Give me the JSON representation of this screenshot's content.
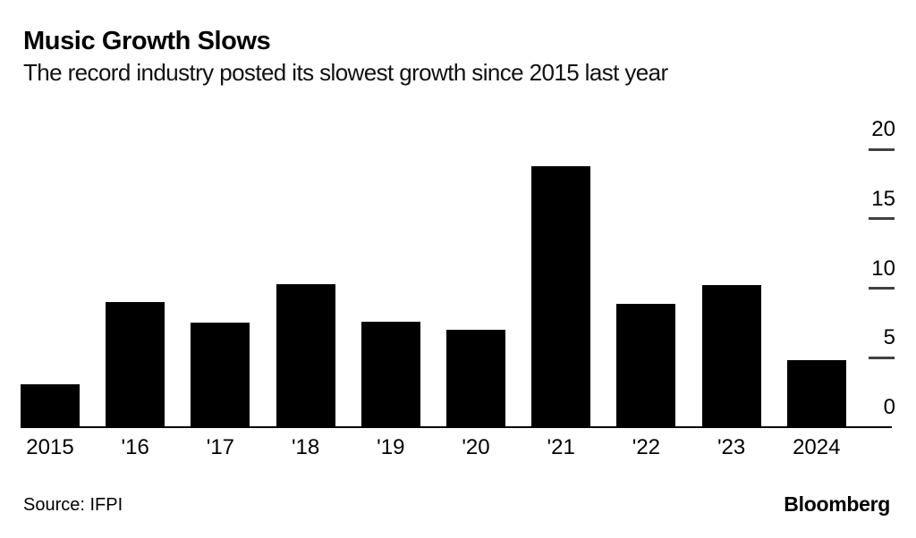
{
  "chart_data": {
    "type": "bar",
    "title": "Music Growth Slows",
    "subtitle": "The record industry posted its slowest growth since 2015 last year",
    "categories": [
      "2015",
      "'16",
      "'17",
      "'18",
      "'19",
      "'20",
      "'21",
      "'22",
      "'23",
      "2024"
    ],
    "values": [
      3.1,
      9.0,
      7.5,
      10.3,
      7.6,
      7.0,
      18.8,
      8.9,
      10.2,
      4.8
    ],
    "xlabel": "",
    "ylabel": "",
    "ylim": [
      0,
      20
    ],
    "yticks": [
      0,
      5,
      10,
      15,
      20
    ],
    "y_axis_side": "right",
    "grid": false,
    "legend": "none",
    "bar_color": "#000000"
  },
  "footer": {
    "source": "Source: IFPI",
    "brand": "Bloomberg"
  },
  "colors": {
    "background": "#ffffff",
    "text": "#000000",
    "bar": "#000000",
    "tick": "#414141",
    "axis_line": "#000000"
  }
}
